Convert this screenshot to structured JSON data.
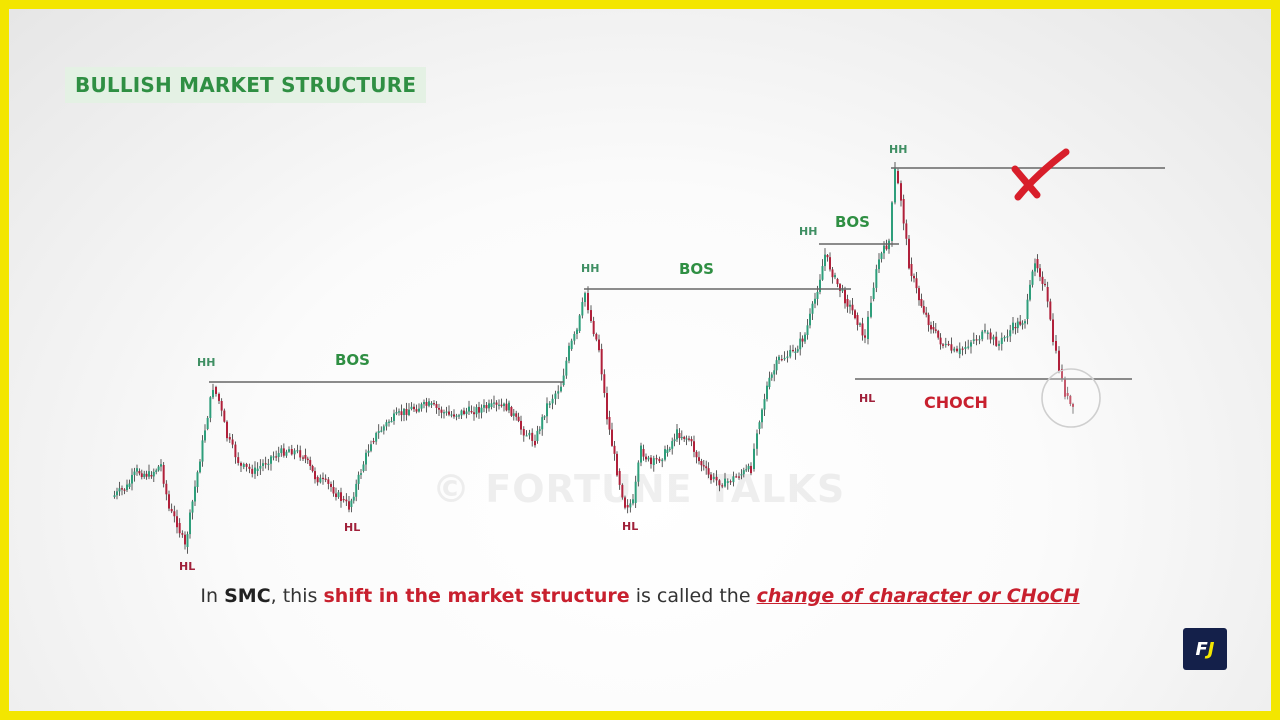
{
  "title": "BULLISH MARKET STRUCTURE",
  "labels": {
    "hh": "HH",
    "hl": "HL",
    "bos": "BOS",
    "choch": "CHOCH"
  },
  "watermark": "© FORTUNE TALKS",
  "caption": {
    "p1": "In ",
    "p2": "SMC",
    "p3": ", this ",
    "p4": "shift in the market structure",
    "p5": " is called the ",
    "p6": "change of character or CHoCH"
  },
  "logo": {
    "f": "F",
    "j": "J"
  },
  "colors": {
    "green_label": "#2f8f43",
    "red_label": "#c8202e",
    "hh_label": "#3f8f63",
    "bullish_candle": "#2e9e7b",
    "bearish_candle": "#b0203a",
    "level_line": "#666666",
    "frame": "#f3e600"
  },
  "icons": {
    "cross": "red-x-mark-icon",
    "circle": "highlight-circle",
    "logo": "fj-logo-icon"
  }
}
